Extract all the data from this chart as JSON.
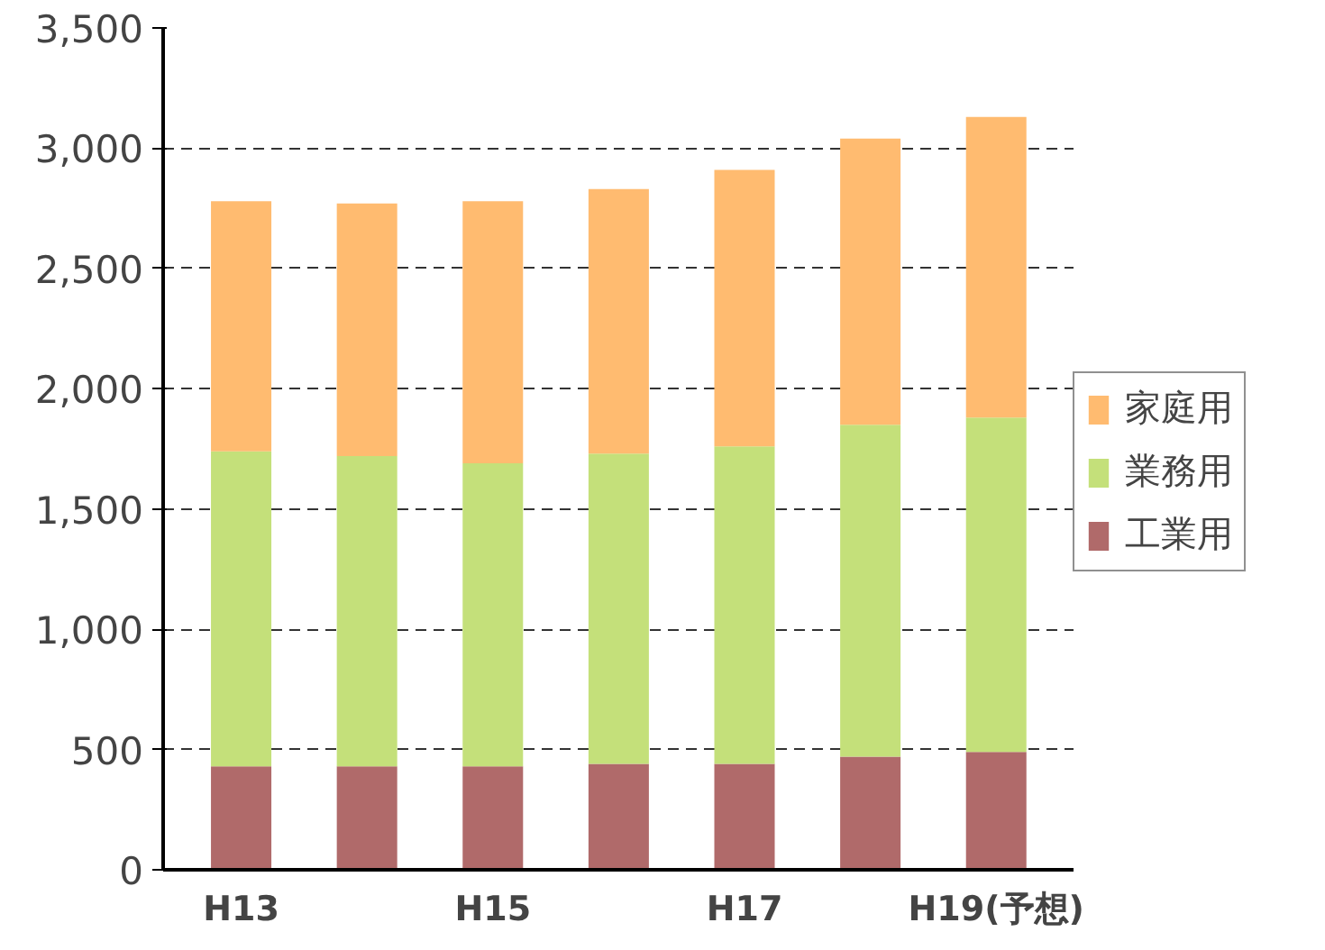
{
  "chart_data": {
    "type": "bar",
    "stacked": true,
    "categories": [
      "H13",
      null,
      "H15",
      null,
      "H17",
      null,
      "H19(予想)"
    ],
    "series": [
      {
        "name": "工業用",
        "color": "#b06a6a",
        "values": [
          430,
          430,
          430,
          440,
          440,
          470,
          490
        ]
      },
      {
        "name": "業務用",
        "color": "#c4e07a",
        "values": [
          1310,
          1290,
          1260,
          1290,
          1320,
          1380,
          1390
        ]
      },
      {
        "name": "家庭用",
        "color": "#ffbb70",
        "values": [
          1040,
          1050,
          1090,
          1100,
          1150,
          1190,
          1250
        ]
      }
    ],
    "ylim": [
      0,
      3500
    ],
    "yticks": [
      0,
      {
        "value": 500,
        "label": "500"
      },
      {
        "value": 1000,
        "label": "1,000"
      },
      {
        "value": 1500,
        "label": "1,500"
      },
      {
        "value": 2000,
        "label": "2,000"
      },
      {
        "value": 2500,
        "label": "2,500"
      },
      {
        "value": 3000,
        "label": "3,000"
      },
      {
        "value": 3500,
        "label": "3,500"
      }
    ],
    "grid": "y",
    "legend": "right"
  }
}
